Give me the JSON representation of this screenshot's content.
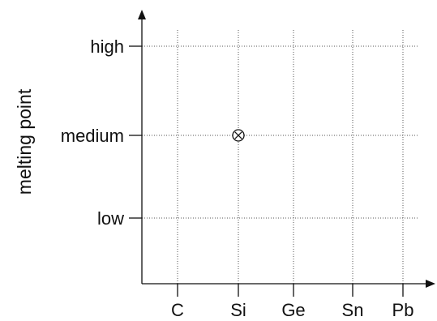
{
  "chart_data": {
    "type": "scatter",
    "title": "",
    "xlabel": "",
    "ylabel": "melting point",
    "categories": [
      "C",
      "Si",
      "Ge",
      "Sn",
      "Pb"
    ],
    "y_levels": [
      "low",
      "medium",
      "high"
    ],
    "grid": true,
    "series": [
      {
        "marker": "circle-x",
        "points": [
          {
            "x": "Si",
            "y": "medium"
          }
        ]
      }
    ]
  }
}
